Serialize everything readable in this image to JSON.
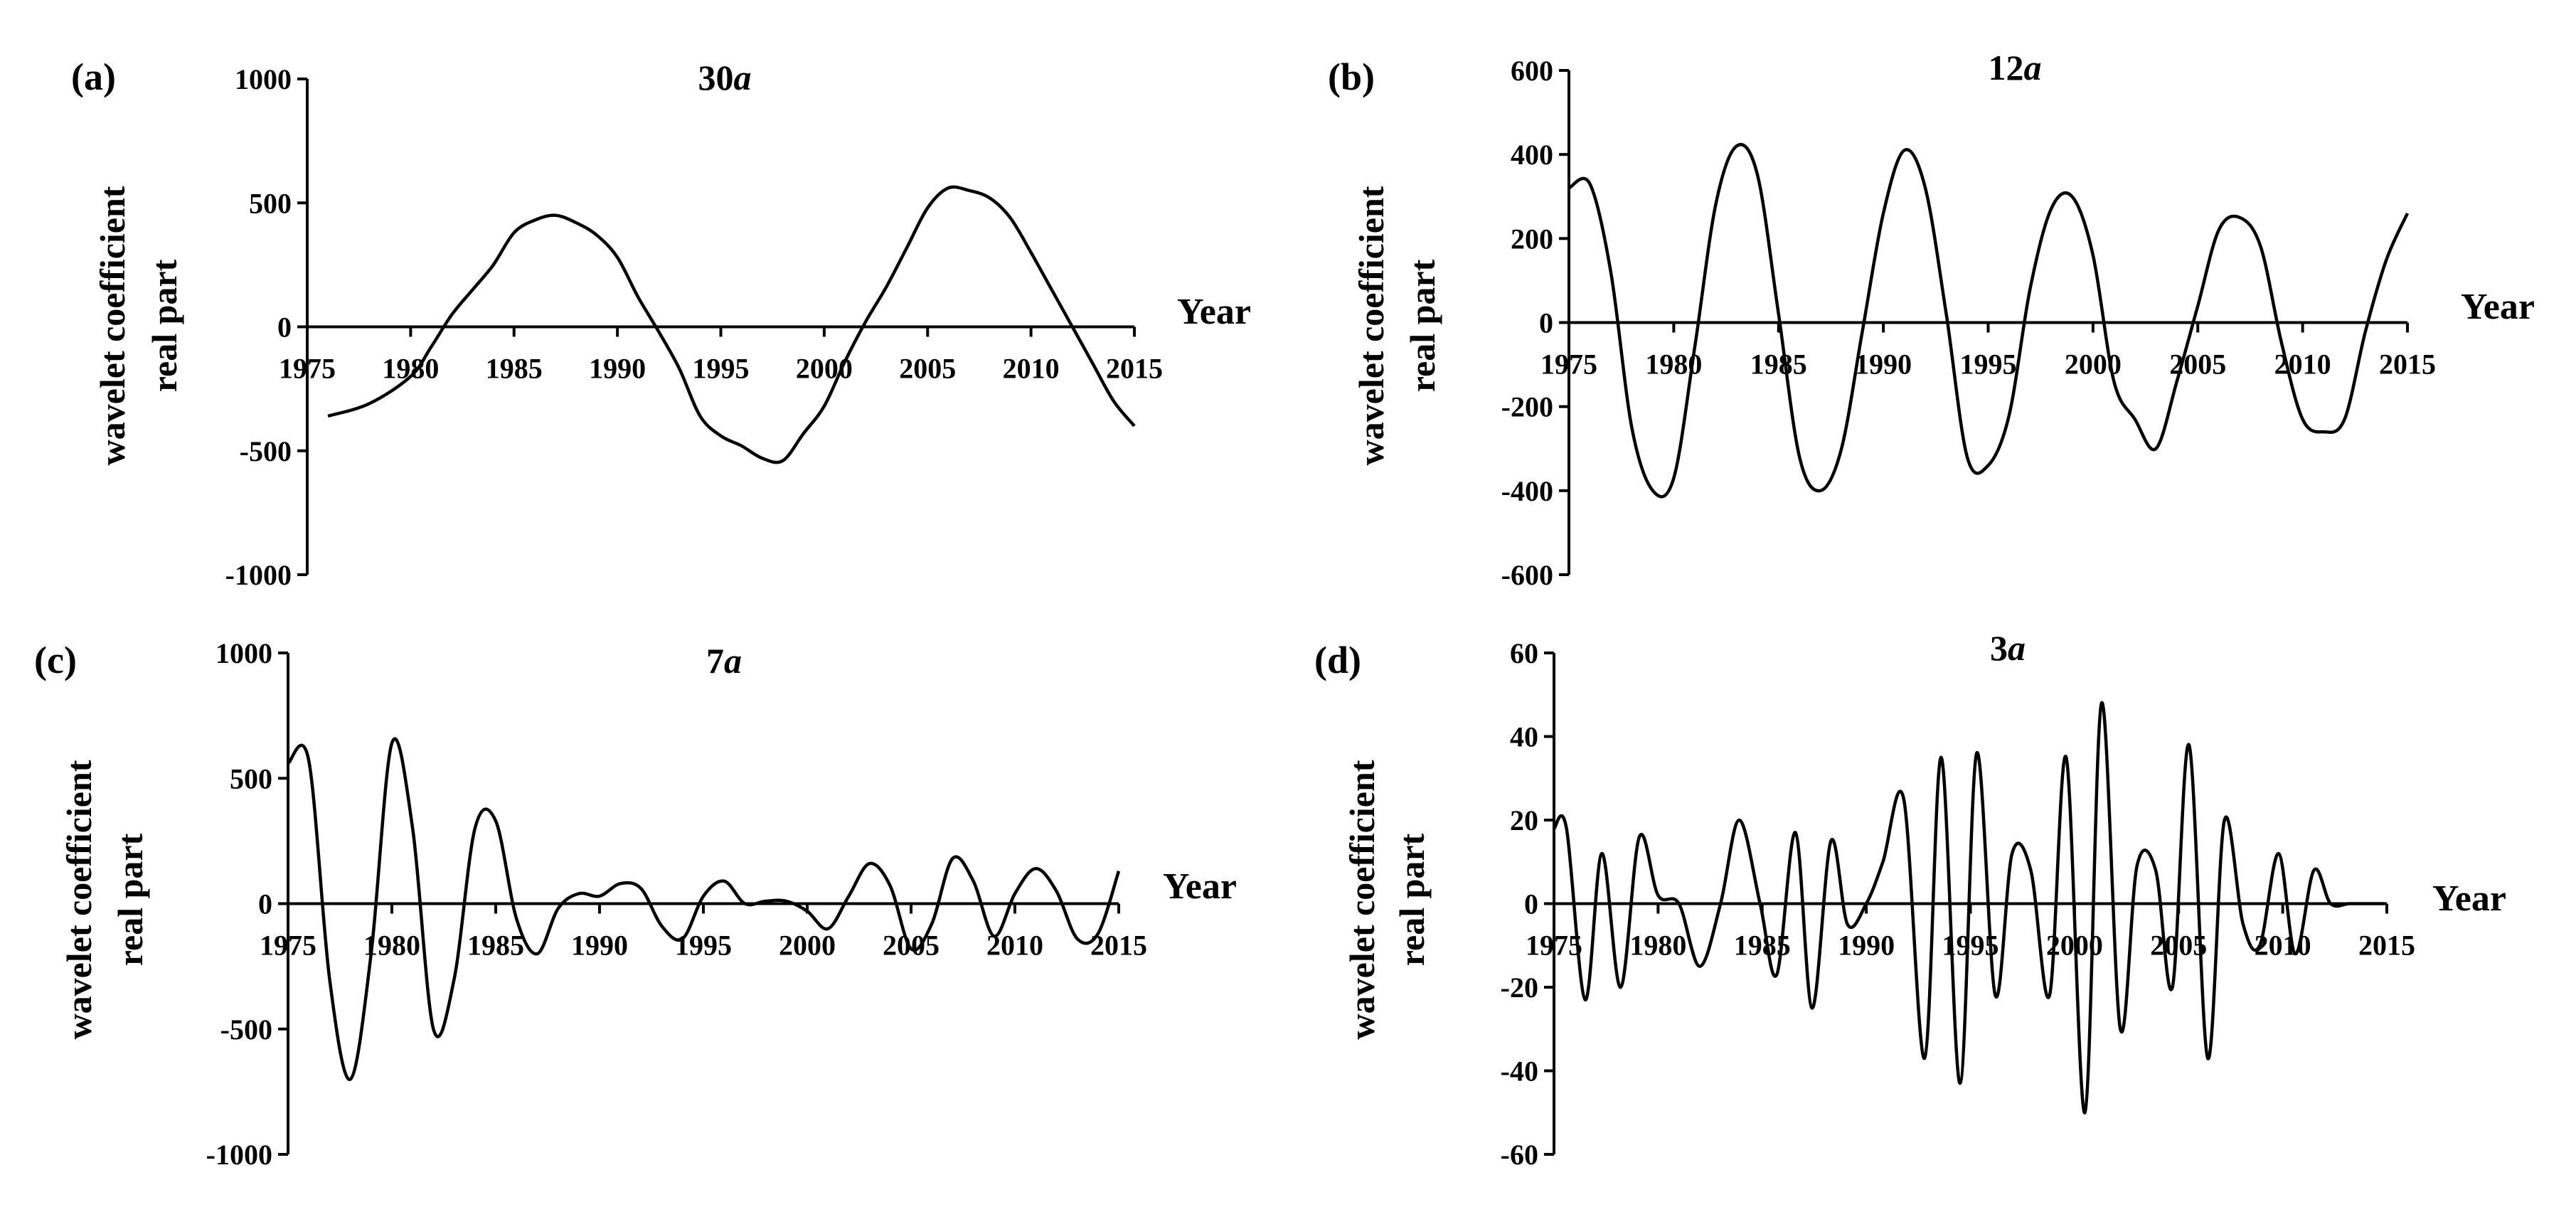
{
  "chart_data": [
    {
      "type": "line",
      "panel_label": "(a)",
      "title": "30a",
      "title_italic_suffix": "a",
      "xlabel": "Year",
      "ylabel_lines": [
        "wavelet coefficient",
        "real part"
      ],
      "x_ticks": [
        "1975",
        "1980",
        "1985",
        "1990",
        "1995",
        "2000",
        "2005",
        "2010",
        "2015"
      ],
      "y_ticks": [
        "-1000",
        "-500",
        "0",
        "500",
        "1000"
      ],
      "xlim": [
        1975,
        2015
      ],
      "ylim": [
        -1000,
        1000
      ],
      "series": [
        {
          "x": [
            1976,
            1978,
            1980,
            1981,
            1982,
            1983,
            1984,
            1985,
            1986,
            1987,
            1988,
            1989,
            1990,
            1991,
            1992,
            1993,
            1994,
            1995,
            1996,
            1997,
            1998,
            1999,
            2000,
            2001,
            2002,
            2003,
            2004,
            2005,
            2006,
            2007,
            2008,
            2009,
            2010,
            2011,
            2012,
            2013,
            2014,
            2015
          ],
          "y": [
            -360,
            -310,
            -200,
            -80,
            50,
            150,
            250,
            380,
            430,
            450,
            420,
            370,
            280,
            120,
            -20,
            -170,
            -360,
            -440,
            -480,
            -530,
            -540,
            -430,
            -320,
            -140,
            20,
            160,
            320,
            480,
            560,
            550,
            520,
            440,
            300,
            150,
            0,
            -150,
            -300,
            -400
          ]
        }
      ]
    },
    {
      "type": "line",
      "panel_label": "(b)",
      "title": "12a",
      "title_italic_suffix": "a",
      "xlabel": "Year",
      "ylabel_lines": [
        "wavelet coefficient",
        "real part"
      ],
      "x_ticks": [
        "1975",
        "1980",
        "1985",
        "1990",
        "1995",
        "2000",
        "2005",
        "2010",
        "2015"
      ],
      "y_ticks": [
        "-600",
        "-400",
        "-200",
        "0",
        "200",
        "400",
        "600"
      ],
      "xlim": [
        1975,
        2015
      ],
      "ylim": [
        -600,
        600
      ],
      "series": [
        {
          "x": [
            1975,
            1976,
            1977,
            1978,
            1979,
            1980,
            1981,
            1982,
            1983,
            1984,
            1985,
            1986,
            1987,
            1988,
            1989,
            1990,
            1991,
            1992,
            1993,
            1994,
            1995,
            1996,
            1997,
            1998,
            1999,
            2000,
            2001,
            2002,
            2003,
            2004,
            2005,
            2006,
            2007,
            2008,
            2009,
            2010,
            2011,
            2012,
            2013,
            2014,
            2015
          ],
          "y": [
            320,
            330,
            120,
            -250,
            -400,
            -370,
            -60,
            280,
            420,
            350,
            20,
            -320,
            -400,
            -300,
            -20,
            260,
            410,
            320,
            20,
            -320,
            -340,
            -220,
            80,
            270,
            300,
            160,
            -140,
            -230,
            -300,
            -140,
            40,
            220,
            250,
            180,
            -50,
            -230,
            -260,
            -230,
            -20,
            150,
            260
          ]
        }
      ]
    },
    {
      "type": "line",
      "panel_label": "(c)",
      "title": "7a",
      "title_italic_suffix": "a",
      "xlabel": "Year",
      "ylabel_lines": [
        "wavelet coefficient",
        "real part"
      ],
      "x_ticks": [
        "1975",
        "1980",
        "1985",
        "1990",
        "1995",
        "2000",
        "2005",
        "2010",
        "2015"
      ],
      "y_ticks": [
        "-1000",
        "-500",
        "0",
        "500",
        "1000"
      ],
      "xlim": [
        1975,
        2015
      ],
      "ylim": [
        -1000,
        1000
      ],
      "series": [
        {
          "x": [
            1975,
            1976,
            1977,
            1978,
            1979,
            1980,
            1981,
            1982,
            1983,
            1984,
            1985,
            1986,
            1987,
            1988,
            1989,
            1990,
            1991,
            1992,
            1993,
            1994,
            1995,
            1996,
            1997,
            1998,
            1999,
            2000,
            2001,
            2002,
            2003,
            2004,
            2005,
            2006,
            2007,
            2008,
            2009,
            2010,
            2011,
            2012,
            2013,
            2014,
            2015
          ],
          "y": [
            560,
            570,
            -300,
            -700,
            -200,
            640,
            300,
            -500,
            -300,
            300,
            330,
            -60,
            -200,
            -20,
            40,
            30,
            80,
            60,
            -90,
            -140,
            30,
            90,
            0,
            10,
            10,
            -30,
            -100,
            30,
            160,
            70,
            -180,
            -80,
            180,
            90,
            -130,
            40,
            140,
            50,
            -140,
            -120,
            130
          ]
        }
      ]
    },
    {
      "type": "line",
      "panel_label": "(d)",
      "title": "3a",
      "title_italic_suffix": "a",
      "xlabel": "Year",
      "ylabel_lines": [
        "wavelet coefficient",
        "real part"
      ],
      "x_ticks": [
        "1975",
        "1980",
        "1985",
        "1990",
        "1995",
        "2000",
        "2005",
        "2010",
        "2015"
      ],
      "y_ticks": [
        "-60",
        "-40",
        "-20",
        "0",
        "20",
        "40",
        "60"
      ],
      "xlim": [
        1975,
        2015
      ],
      "ylim": [
        -60,
        60
      ],
      "series": [
        {
          "x": [
            1975,
            1975.6,
            1976.5,
            1977.3,
            1978.2,
            1979.1,
            1980,
            1981,
            1982,
            1983,
            1983.9,
            1984.9,
            1985.7,
            1986.6,
            1987.4,
            1988.3,
            1989.1,
            1990,
            1990.8,
            1991.8,
            1992.8,
            1993.6,
            1994.5,
            1995.3,
            1996.2,
            1997,
            1997.9,
            1998.8,
            1999.6,
            2000.5,
            2001.3,
            2002.2,
            2003,
            2003.9,
            2004.7,
            2005.5,
            2006.4,
            2007.2,
            2008.1,
            2008.9,
            2009.8,
            2010.6,
            2011.5,
            2012.3,
            2013.2,
            2014,
            2014.9
          ],
          "y": [
            18,
            18,
            -23,
            12,
            -20,
            16,
            2,
            0,
            -15,
            0,
            20,
            0,
            -17,
            17,
            -25,
            15,
            -5,
            0,
            10,
            25,
            -37,
            35,
            -43,
            36,
            -22,
            12,
            8,
            -22,
            35,
            -50,
            48,
            -30,
            9,
            8,
            -20,
            38,
            -37,
            20,
            -5,
            -10,
            12,
            -12,
            8,
            0,
            0,
            0,
            0
          ]
        }
      ]
    }
  ]
}
